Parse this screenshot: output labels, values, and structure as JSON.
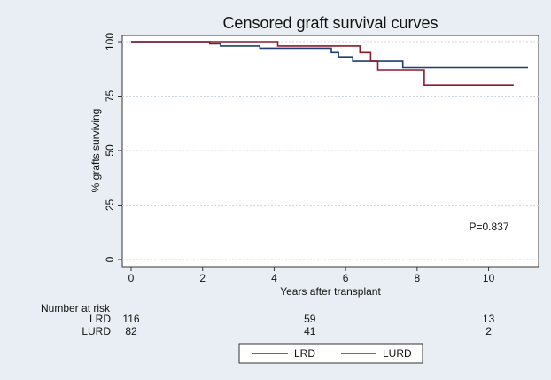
{
  "chart_data": {
    "type": "line",
    "title": "Censored graft survival curves",
    "xlabel": "Years after transplant",
    "ylabel": "% grafts surviving",
    "xlim": [
      0,
      11.2
    ],
    "ylim": [
      0,
      100
    ],
    "xticks": [
      0,
      2,
      4,
      6,
      8,
      10
    ],
    "yticks": [
      0,
      25,
      50,
      75,
      100
    ],
    "grid": "horizontal dotted",
    "series": [
      {
        "name": "LRD",
        "color": "#1f3f6e",
        "x": [
          0,
          2.2,
          2.2,
          2.5,
          2.5,
          3.6,
          3.6,
          5.6,
          5.6,
          5.8,
          5.8,
          6.2,
          6.2,
          6.7,
          6.7,
          7.6,
          7.6,
          11.1
        ],
        "y": [
          100,
          100,
          99,
          99,
          98,
          98,
          97,
          97,
          95,
          95,
          93,
          93,
          91,
          91,
          91,
          91,
          88,
          88
        ]
      },
      {
        "name": "LURD",
        "color": "#8b1a2b",
        "x": [
          0,
          4.1,
          4.1,
          6.4,
          6.4,
          6.7,
          6.7,
          6.9,
          6.9,
          8.2,
          8.2,
          10.7
        ],
        "y": [
          100,
          100,
          98,
          98,
          95,
          95,
          91,
          91,
          87,
          87,
          80,
          80
        ]
      }
    ],
    "annotation": "P=0.837",
    "legend": {
      "position": "bottom",
      "entries": [
        "LRD",
        "LURD"
      ]
    }
  },
  "risk_table": {
    "header": "Number at risk",
    "rows": [
      {
        "label": "LRD",
        "counts": [
          "116",
          "59",
          "13"
        ],
        "times": [
          0,
          5,
          10
        ]
      },
      {
        "label": "LURD",
        "counts": [
          "82",
          "41",
          "2"
        ],
        "times": [
          0,
          5,
          10
        ]
      }
    ]
  }
}
